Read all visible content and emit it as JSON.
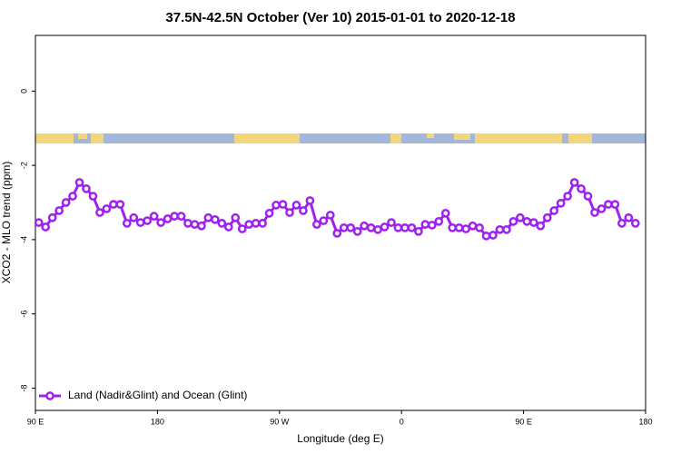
{
  "chart_data": {
    "type": "line",
    "title": "37.5N-42.5N October (Ver 10)   2015-01-01 to 2020-12-18",
    "xlabel": "Longitude (deg E)",
    "ylabel": "XCO2 - MLO trend (ppm)",
    "xlim": [
      90,
      540
    ],
    "ylim": [
      -8.6,
      1.5
    ],
    "xticks": [
      {
        "value": 90,
        "label": "90 E"
      },
      {
        "value": 180,
        "label": "180"
      },
      {
        "value": 270,
        "label": "90 W"
      },
      {
        "value": 360,
        "label": "0"
      },
      {
        "value": 450,
        "label": "90 E"
      },
      {
        "value": 540,
        "label": "180"
      }
    ],
    "yticks": [
      0,
      -2,
      -4,
      -6,
      -8
    ],
    "legend": "bottom-left",
    "x": [
      92.5,
      97.5,
      102.5,
      107.5,
      112.5,
      117.5,
      122.5,
      127.5,
      132.5,
      137.5,
      142.5,
      147.5,
      152.5,
      157.5,
      162.5,
      167.5,
      172.5,
      177.5,
      182.5,
      187.5,
      192.5,
      197.5,
      202.5,
      207.5,
      212.5,
      217.5,
      222.5,
      227.5,
      232.5,
      237.5,
      242.5,
      247.5,
      252.5,
      257.5,
      262.5,
      267.5,
      272.5,
      277.5,
      282.5,
      287.5,
      292.5,
      297.5,
      302.5,
      307.5,
      312.5,
      317.5,
      322.5,
      327.5,
      332.5,
      337.5,
      342.5,
      347.5,
      352.5,
      357.5,
      362.5,
      367.5,
      372.5,
      377.5,
      382.5,
      387.5,
      392.5,
      397.5,
      402.5,
      407.5,
      412.5,
      417.5,
      422.5,
      427.5,
      432.5,
      437.5,
      442.5,
      447.5,
      452.5,
      457.5,
      462.5,
      467.5,
      472.5,
      477.5,
      482.5,
      487.5,
      492.5,
      497.5,
      502.5,
      507.5,
      512.5,
      517.5,
      522.5,
      527.5,
      532.5
    ],
    "series": [
      {
        "name": "Land (Nadir&Glint) and Ocean (Glint)",
        "color": "#a020f0",
        "values": [
          -3.54,
          -3.66,
          -3.41,
          -3.22,
          -3.0,
          -2.83,
          -2.46,
          -2.63,
          -2.83,
          -3.27,
          -3.17,
          -3.05,
          -3.05,
          -3.56,
          -3.41,
          -3.54,
          -3.49,
          -3.37,
          -3.54,
          -3.44,
          -3.37,
          -3.37,
          -3.56,
          -3.59,
          -3.63,
          -3.41,
          -3.46,
          -3.56,
          -3.66,
          -3.41,
          -3.71,
          -3.59,
          -3.56,
          -3.56,
          -3.29,
          -3.07,
          -3.05,
          -3.27,
          -3.07,
          -3.22,
          -2.95,
          -3.59,
          -3.49,
          -3.34,
          -3.83,
          -3.68,
          -3.68,
          -3.78,
          -3.63,
          -3.68,
          -3.73,
          -3.66,
          -3.54,
          -3.68,
          -3.68,
          -3.68,
          -3.78,
          -3.59,
          -3.61,
          -3.51,
          -3.29,
          -3.68,
          -3.68,
          -3.71,
          -3.63,
          -3.68,
          -3.9,
          -3.88,
          -3.73,
          -3.73,
          -3.51,
          -3.41,
          -3.51,
          -3.54,
          -3.63,
          -3.41,
          -3.22,
          -3.02,
          -2.83,
          -2.46,
          -2.63,
          -2.83,
          -3.27,
          -3.17,
          -3.05,
          -3.05,
          -3.56,
          -3.41,
          -3.56
        ]
      }
    ]
  }
}
